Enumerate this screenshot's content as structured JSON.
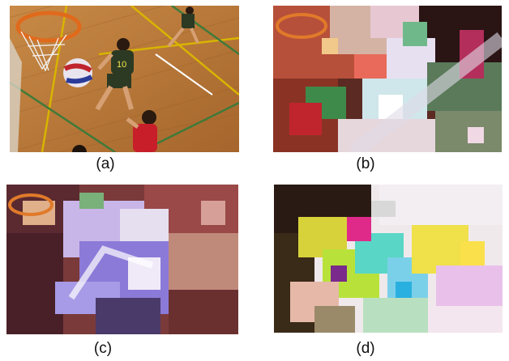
{
  "figure": {
    "panels": [
      {
        "id": "a",
        "caption": "(a)"
      },
      {
        "id": "b",
        "caption": "(b)"
      },
      {
        "id": "c",
        "caption": "(c)"
      },
      {
        "id": "d",
        "caption": "(d)"
      }
    ]
  },
  "colors": {
    "court_floor": "#b97a3a",
    "court_line_yellow": "#d8b400",
    "court_line_green": "#3f7a3a",
    "hoop_orange": "#e06a1c",
    "jersey_dark": "#2c3a24",
    "jersey_red": "#c81e2a"
  },
  "icons": [
    "basketball-scene-image",
    "corrupted-frame-b",
    "corrupted-frame-c",
    "corrupted-frame-d"
  ]
}
